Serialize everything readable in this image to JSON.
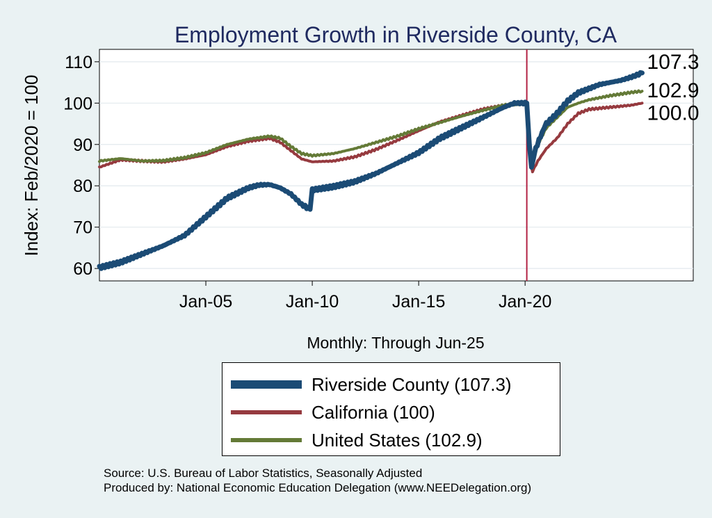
{
  "chart_data": {
    "type": "line",
    "title": "Employment Growth in Riverside  County, CA",
    "xlabel": "Monthly: Through Jun-25",
    "ylabel": "Index: Feb/2020 = 100",
    "ylim": [
      57,
      113
    ],
    "yticks": [
      60,
      70,
      80,
      90,
      100,
      110
    ],
    "xlim": [
      2000.0,
      2027.9
    ],
    "xticks": [
      {
        "value": 2005.0,
        "label": "Jan-05"
      },
      {
        "value": 2010.0,
        "label": "Jan-10"
      },
      {
        "value": 2015.0,
        "label": "Jan-15"
      },
      {
        "value": 2020.0,
        "label": "Jan-20"
      }
    ],
    "reference_line": {
      "x": 2020.08,
      "color": "#b22243"
    },
    "grid": true,
    "series": [
      {
        "name": "Riverside County",
        "color": "#1b4b75",
        "end_label": "107.3",
        "points": [
          [
            2000.0,
            60.2
          ],
          [
            2001.0,
            61.5
          ],
          [
            2002.0,
            63.5
          ],
          [
            2003.0,
            65.5
          ],
          [
            2004.0,
            68.0
          ],
          [
            2005.0,
            72.5
          ],
          [
            2006.0,
            77.0
          ],
          [
            2007.0,
            79.5
          ],
          [
            2007.5,
            80.2
          ],
          [
            2008.0,
            80.3
          ],
          [
            2008.5,
            79.5
          ],
          [
            2009.0,
            78.0
          ],
          [
            2009.5,
            75.5
          ],
          [
            2009.9,
            74.3
          ],
          [
            2010.0,
            79.0
          ],
          [
            2011.0,
            79.8
          ],
          [
            2012.0,
            81.0
          ],
          [
            2013.0,
            83.0
          ],
          [
            2014.0,
            85.5
          ],
          [
            2015.0,
            88.0
          ],
          [
            2016.0,
            91.5
          ],
          [
            2017.0,
            94.0
          ],
          [
            2018.0,
            96.5
          ],
          [
            2019.0,
            99.0
          ],
          [
            2019.5,
            100.0
          ],
          [
            2020.08,
            100.0
          ],
          [
            2020.2,
            90.0
          ],
          [
            2020.3,
            84.5
          ],
          [
            2020.5,
            89.0
          ],
          [
            2020.8,
            93.0
          ],
          [
            2021.0,
            95.0
          ],
          [
            2021.5,
            97.5
          ],
          [
            2022.0,
            100.5
          ],
          [
            2022.5,
            102.5
          ],
          [
            2023.0,
            103.5
          ],
          [
            2023.5,
            104.5
          ],
          [
            2024.0,
            105.0
          ],
          [
            2024.5,
            105.5
          ],
          [
            2025.0,
            106.3
          ],
          [
            2025.5,
            107.3
          ]
        ]
      },
      {
        "name": "California",
        "color": "#963a3f",
        "end_label": "100.0",
        "points": [
          [
            2000.0,
            84.5
          ],
          [
            2001.0,
            86.3
          ],
          [
            2002.0,
            86.0
          ],
          [
            2003.0,
            85.8
          ],
          [
            2004.0,
            86.5
          ],
          [
            2005.0,
            87.5
          ],
          [
            2006.0,
            89.5
          ],
          [
            2007.0,
            90.8
          ],
          [
            2008.0,
            91.5
          ],
          [
            2008.5,
            90.5
          ],
          [
            2009.0,
            88.5
          ],
          [
            2009.5,
            86.5
          ],
          [
            2010.0,
            85.8
          ],
          [
            2011.0,
            86.0
          ],
          [
            2012.0,
            87.0
          ],
          [
            2013.0,
            88.8
          ],
          [
            2014.0,
            91.0
          ],
          [
            2015.0,
            93.3
          ],
          [
            2016.0,
            95.5
          ],
          [
            2017.0,
            97.0
          ],
          [
            2018.0,
            98.5
          ],
          [
            2019.0,
            99.5
          ],
          [
            2020.08,
            100.0
          ],
          [
            2020.25,
            86.0
          ],
          [
            2020.35,
            83.5
          ],
          [
            2020.6,
            86.0
          ],
          [
            2021.0,
            89.0
          ],
          [
            2021.5,
            91.5
          ],
          [
            2022.0,
            95.0
          ],
          [
            2022.5,
            97.5
          ],
          [
            2023.0,
            98.5
          ],
          [
            2024.0,
            99.0
          ],
          [
            2025.0,
            99.5
          ],
          [
            2025.5,
            100.0
          ]
        ]
      },
      {
        "name": "United States",
        "color": "#647a37",
        "end_label": "102.9",
        "points": [
          [
            2000.0,
            86.0
          ],
          [
            2001.0,
            86.6
          ],
          [
            2002.0,
            86.0
          ],
          [
            2003.0,
            86.1
          ],
          [
            2004.0,
            86.8
          ],
          [
            2005.0,
            88.0
          ],
          [
            2006.0,
            90.0
          ],
          [
            2007.0,
            91.3
          ],
          [
            2008.0,
            92.0
          ],
          [
            2008.5,
            91.5
          ],
          [
            2009.0,
            89.5
          ],
          [
            2009.5,
            87.8
          ],
          [
            2010.0,
            87.3
          ],
          [
            2011.0,
            87.8
          ],
          [
            2012.0,
            89.0
          ],
          [
            2013.0,
            90.5
          ],
          [
            2014.0,
            92.0
          ],
          [
            2015.0,
            93.8
          ],
          [
            2016.0,
            95.3
          ],
          [
            2017.0,
            96.8
          ],
          [
            2018.0,
            98.2
          ],
          [
            2019.0,
            99.5
          ],
          [
            2020.08,
            100.0
          ],
          [
            2020.25,
            87.5
          ],
          [
            2020.35,
            86.0
          ],
          [
            2020.6,
            90.0
          ],
          [
            2021.0,
            94.0
          ],
          [
            2021.5,
            96.5
          ],
          [
            2022.0,
            99.0
          ],
          [
            2022.5,
            100.0
          ],
          [
            2023.0,
            100.8
          ],
          [
            2024.0,
            101.8
          ],
          [
            2025.0,
            102.6
          ],
          [
            2025.5,
            102.9
          ]
        ]
      }
    ]
  },
  "legend": {
    "items": [
      {
        "label": "Riverside  County (107.3)",
        "color": "#1b4b75"
      },
      {
        "label": "California (100)",
        "color": "#963a3f"
      },
      {
        "label": "United States (102.9)",
        "color": "#647a37"
      }
    ]
  },
  "source": {
    "line1": "Source: U.S. Bureau of Labor Statistics, Seasonally Adjusted",
    "line2": "Produced by: National Economic Education Delegation (www.NEEDelegation.org)"
  }
}
